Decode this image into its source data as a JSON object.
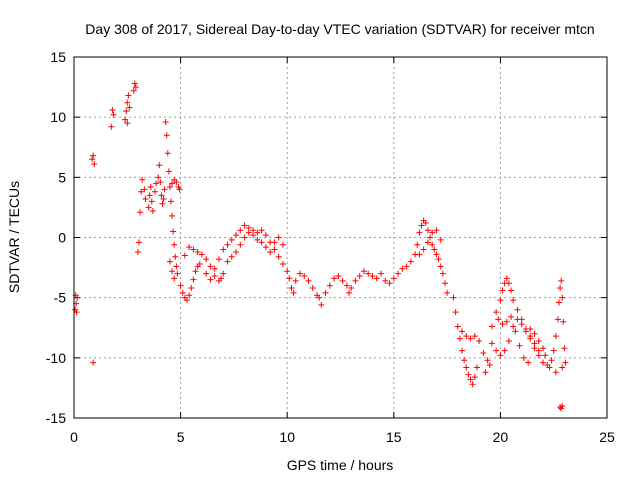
{
  "chart_data": {
    "type": "scatter",
    "title": "Day 308 of 2017, Sidereal Day-to-day VTEC variation (SDTVAR) for receiver mtcn",
    "xlabel": "GPS time / hours",
    "ylabel": "SDTVAR / TECUs",
    "xlim": [
      0,
      25
    ],
    "ylim": [
      -15,
      15
    ],
    "xticks": [
      "0",
      "5",
      "10",
      "15",
      "20",
      "25"
    ],
    "yticks": [
      "-15",
      "-10",
      "-5",
      "0",
      "5",
      "10",
      "15"
    ],
    "grid": true,
    "marker": "plus",
    "color": "#ff0000",
    "series": [
      {
        "name": "SDTVAR",
        "points": [
          [
            0.05,
            -6.0
          ],
          [
            0.1,
            -5.5
          ],
          [
            0.15,
            -5.0
          ],
          [
            0.12,
            -6.2
          ],
          [
            0.08,
            -4.8
          ],
          [
            0.85,
            6.5
          ],
          [
            0.9,
            6.8
          ],
          [
            0.95,
            6.1
          ],
          [
            0.9,
            -10.4
          ],
          [
            1.75,
            9.2
          ],
          [
            1.8,
            10.6
          ],
          [
            1.85,
            10.2
          ],
          [
            2.4,
            9.8
          ],
          [
            2.45,
            10.5
          ],
          [
            2.5,
            11.2
          ],
          [
            2.55,
            11.8
          ],
          [
            2.5,
            9.5
          ],
          [
            2.6,
            10.8
          ],
          [
            2.8,
            12.2
          ],
          [
            2.85,
            12.8
          ],
          [
            2.9,
            12.5
          ],
          [
            3.0,
            -1.2
          ],
          [
            3.05,
            -0.4
          ],
          [
            3.1,
            2.1
          ],
          [
            3.15,
            3.8
          ],
          [
            3.2,
            4.8
          ],
          [
            3.3,
            4.0
          ],
          [
            3.35,
            3.2
          ],
          [
            3.5,
            2.5
          ],
          [
            3.55,
            3.5
          ],
          [
            3.6,
            4.2
          ],
          [
            3.65,
            3.0
          ],
          [
            3.7,
            2.2
          ],
          [
            3.8,
            3.8
          ],
          [
            3.85,
            4.5
          ],
          [
            3.95,
            5.0
          ],
          [
            4.0,
            6.0
          ],
          [
            4.05,
            4.6
          ],
          [
            4.1,
            3.5
          ],
          [
            4.15,
            2.8
          ],
          [
            4.2,
            3.2
          ],
          [
            4.25,
            4.0
          ],
          [
            4.3,
            9.6
          ],
          [
            4.35,
            8.5
          ],
          [
            4.4,
            7.0
          ],
          [
            4.45,
            5.5
          ],
          [
            4.5,
            4.2
          ],
          [
            4.55,
            3.0
          ],
          [
            4.6,
            1.8
          ],
          [
            4.65,
            0.5
          ],
          [
            4.7,
            -0.6
          ],
          [
            4.75,
            -1.6
          ],
          [
            4.8,
            -2.4
          ],
          [
            4.85,
            -3.0
          ],
          [
            4.6,
            4.5
          ],
          [
            4.7,
            4.8
          ],
          [
            4.8,
            4.6
          ],
          [
            4.9,
            4.2
          ],
          [
            4.95,
            4.0
          ],
          [
            4.5,
            -2.0
          ],
          [
            4.6,
            -2.8
          ],
          [
            4.7,
            -3.4
          ],
          [
            5.0,
            -4.0
          ],
          [
            5.1,
            -4.6
          ],
          [
            5.2,
            -5.0
          ],
          [
            5.3,
            -5.2
          ],
          [
            5.4,
            -4.8
          ],
          [
            5.5,
            -4.2
          ],
          [
            5.6,
            -3.5
          ],
          [
            5.7,
            -2.8
          ],
          [
            5.8,
            -2.4
          ],
          [
            5.9,
            -2.2
          ],
          [
            5.2,
            -1.5
          ],
          [
            5.4,
            -0.8
          ],
          [
            5.6,
            -1.0
          ],
          [
            5.8,
            -1.2
          ],
          [
            6.0,
            -1.4
          ],
          [
            6.2,
            -1.8
          ],
          [
            6.4,
            -2.4
          ],
          [
            6.6,
            -3.2
          ],
          [
            6.8,
            -3.6
          ],
          [
            6.9,
            -3.4
          ],
          [
            7.0,
            -3.0
          ],
          [
            6.2,
            -3.0
          ],
          [
            6.4,
            -3.5
          ],
          [
            6.6,
            -2.6
          ],
          [
            6.8,
            -1.8
          ],
          [
            7.0,
            -1.0
          ],
          [
            7.2,
            -0.6
          ],
          [
            7.4,
            -0.2
          ],
          [
            7.2,
            -2.0
          ],
          [
            7.4,
            -1.6
          ],
          [
            7.6,
            -1.2
          ],
          [
            7.8,
            -0.6
          ],
          [
            8.0,
            0.0
          ],
          [
            8.2,
            0.4
          ],
          [
            8.4,
            0.6
          ],
          [
            7.6,
            0.2
          ],
          [
            7.8,
            0.6
          ],
          [
            8.0,
            1.0
          ],
          [
            8.2,
            0.8
          ],
          [
            8.4,
            0.2
          ],
          [
            8.6,
            -0.2
          ],
          [
            8.8,
            -0.4
          ],
          [
            8.6,
            0.4
          ],
          [
            8.8,
            0.6
          ],
          [
            9.0,
            0.2
          ],
          [
            9.2,
            -0.4
          ],
          [
            9.4,
            -1.0
          ],
          [
            9.6,
            -1.6
          ],
          [
            9.8,
            -2.2
          ],
          [
            9.0,
            -0.8
          ],
          [
            9.2,
            -1.2
          ],
          [
            9.4,
            -0.4
          ],
          [
            9.6,
            0.0
          ],
          [
            9.8,
            -0.6
          ],
          [
            10.0,
            -2.8
          ],
          [
            10.1,
            -3.4
          ],
          [
            10.2,
            -4.2
          ],
          [
            10.3,
            -4.6
          ],
          [
            10.4,
            -3.6
          ],
          [
            10.6,
            -3.0
          ],
          [
            10.8,
            -3.2
          ],
          [
            11.0,
            -3.6
          ],
          [
            11.2,
            -4.2
          ],
          [
            11.4,
            -4.8
          ],
          [
            11.6,
            -5.6
          ],
          [
            11.5,
            -5.0
          ],
          [
            11.8,
            -4.6
          ],
          [
            12.0,
            -4.0
          ],
          [
            12.2,
            -3.4
          ],
          [
            12.4,
            -3.2
          ],
          [
            12.6,
            -3.6
          ],
          [
            12.8,
            -4.0
          ],
          [
            12.9,
            -4.6
          ],
          [
            13.0,
            -4.2
          ],
          [
            13.2,
            -3.6
          ],
          [
            13.4,
            -3.2
          ],
          [
            13.6,
            -2.8
          ],
          [
            13.8,
            -3.0
          ],
          [
            14.0,
            -3.2
          ],
          [
            14.2,
            -3.4
          ],
          [
            14.4,
            -3.0
          ],
          [
            14.6,
            -3.6
          ],
          [
            14.8,
            -3.8
          ],
          [
            15.0,
            -3.4
          ],
          [
            15.2,
            -3.0
          ],
          [
            15.4,
            -2.6
          ],
          [
            15.6,
            -2.4
          ],
          [
            15.8,
            -2.0
          ],
          [
            16.0,
            -1.4
          ],
          [
            16.1,
            -0.6
          ],
          [
            16.2,
            0.4
          ],
          [
            16.3,
            1.0
          ],
          [
            16.4,
            1.4
          ],
          [
            16.5,
            1.2
          ],
          [
            16.6,
            0.6
          ],
          [
            16.7,
            0.0
          ],
          [
            16.8,
            -0.6
          ],
          [
            16.9,
            -1.0
          ],
          [
            17.0,
            -1.4
          ],
          [
            17.1,
            -1.8
          ],
          [
            17.2,
            -2.4
          ],
          [
            17.3,
            -3.0
          ],
          [
            17.4,
            -3.8
          ],
          [
            17.5,
            -4.6
          ],
          [
            16.2,
            -1.4
          ],
          [
            16.4,
            -1.0
          ],
          [
            16.6,
            -0.4
          ],
          [
            16.8,
            0.4
          ],
          [
            17.0,
            0.6
          ],
          [
            17.2,
            -0.2
          ],
          [
            17.8,
            -5.0
          ],
          [
            17.9,
            -6.2
          ],
          [
            18.0,
            -7.4
          ],
          [
            18.1,
            -8.4
          ],
          [
            18.2,
            -9.4
          ],
          [
            18.3,
            -10.2
          ],
          [
            18.4,
            -10.8
          ],
          [
            18.5,
            -11.4
          ],
          [
            18.6,
            -11.8
          ],
          [
            18.7,
            -12.2
          ],
          [
            18.8,
            -11.6
          ],
          [
            18.9,
            -10.8
          ],
          [
            18.2,
            -7.8
          ],
          [
            18.4,
            -8.2
          ],
          [
            18.6,
            -8.4
          ],
          [
            18.8,
            -8.2
          ],
          [
            19.0,
            -8.6
          ],
          [
            19.2,
            -9.6
          ],
          [
            19.4,
            -10.2
          ],
          [
            19.5,
            -10.6
          ],
          [
            19.3,
            -11.2
          ],
          [
            19.6,
            -7.4
          ],
          [
            19.8,
            -6.2
          ],
          [
            20.0,
            -5.2
          ],
          [
            20.1,
            -4.4
          ],
          [
            20.2,
            -3.8
          ],
          [
            20.3,
            -3.4
          ],
          [
            20.4,
            -3.8
          ],
          [
            20.5,
            -4.4
          ],
          [
            20.6,
            -5.2
          ],
          [
            20.8,
            -6.0
          ],
          [
            21.0,
            -6.8
          ],
          [
            21.2,
            -7.6
          ],
          [
            21.4,
            -8.4
          ],
          [
            21.6,
            -9.2
          ],
          [
            21.8,
            -9.8
          ],
          [
            22.0,
            -10.4
          ],
          [
            19.6,
            -8.8
          ],
          [
            19.8,
            -9.4
          ],
          [
            20.0,
            -9.8
          ],
          [
            20.2,
            -9.4
          ],
          [
            20.4,
            -8.6
          ],
          [
            20.6,
            -7.4
          ],
          [
            20.8,
            -6.8
          ],
          [
            21.0,
            -7.2
          ],
          [
            21.2,
            -7.8
          ],
          [
            21.4,
            -8.2
          ],
          [
            21.6,
            -8.8
          ],
          [
            21.8,
            -9.4
          ],
          [
            19.9,
            -6.8
          ],
          [
            20.1,
            -7.2
          ],
          [
            20.3,
            -7.0
          ],
          [
            20.5,
            -6.6
          ],
          [
            20.7,
            -7.8
          ],
          [
            20.9,
            -9.0
          ],
          [
            21.1,
            -10.0
          ],
          [
            21.3,
            -10.4
          ],
          [
            21.4,
            -7.6
          ],
          [
            21.6,
            -8.0
          ],
          [
            21.8,
            -8.6
          ],
          [
            22.0,
            -9.2
          ],
          [
            22.1,
            -9.8
          ],
          [
            22.2,
            -10.6
          ],
          [
            22.3,
            -10.8
          ],
          [
            22.4,
            -10.2
          ],
          [
            22.5,
            -9.4
          ],
          [
            22.6,
            -8.2
          ],
          [
            22.7,
            -6.8
          ],
          [
            22.75,
            -5.4
          ],
          [
            22.8,
            -4.2
          ],
          [
            22.85,
            -3.6
          ],
          [
            22.9,
            -5.0
          ],
          [
            22.95,
            -7.0
          ],
          [
            23.0,
            -9.2
          ],
          [
            23.05,
            -10.4
          ],
          [
            22.9,
            -10.8
          ],
          [
            22.6,
            -11.2
          ],
          [
            22.8,
            -14.1
          ],
          [
            22.85,
            -14.2
          ],
          [
            22.9,
            -14.0
          ]
        ]
      }
    ]
  }
}
